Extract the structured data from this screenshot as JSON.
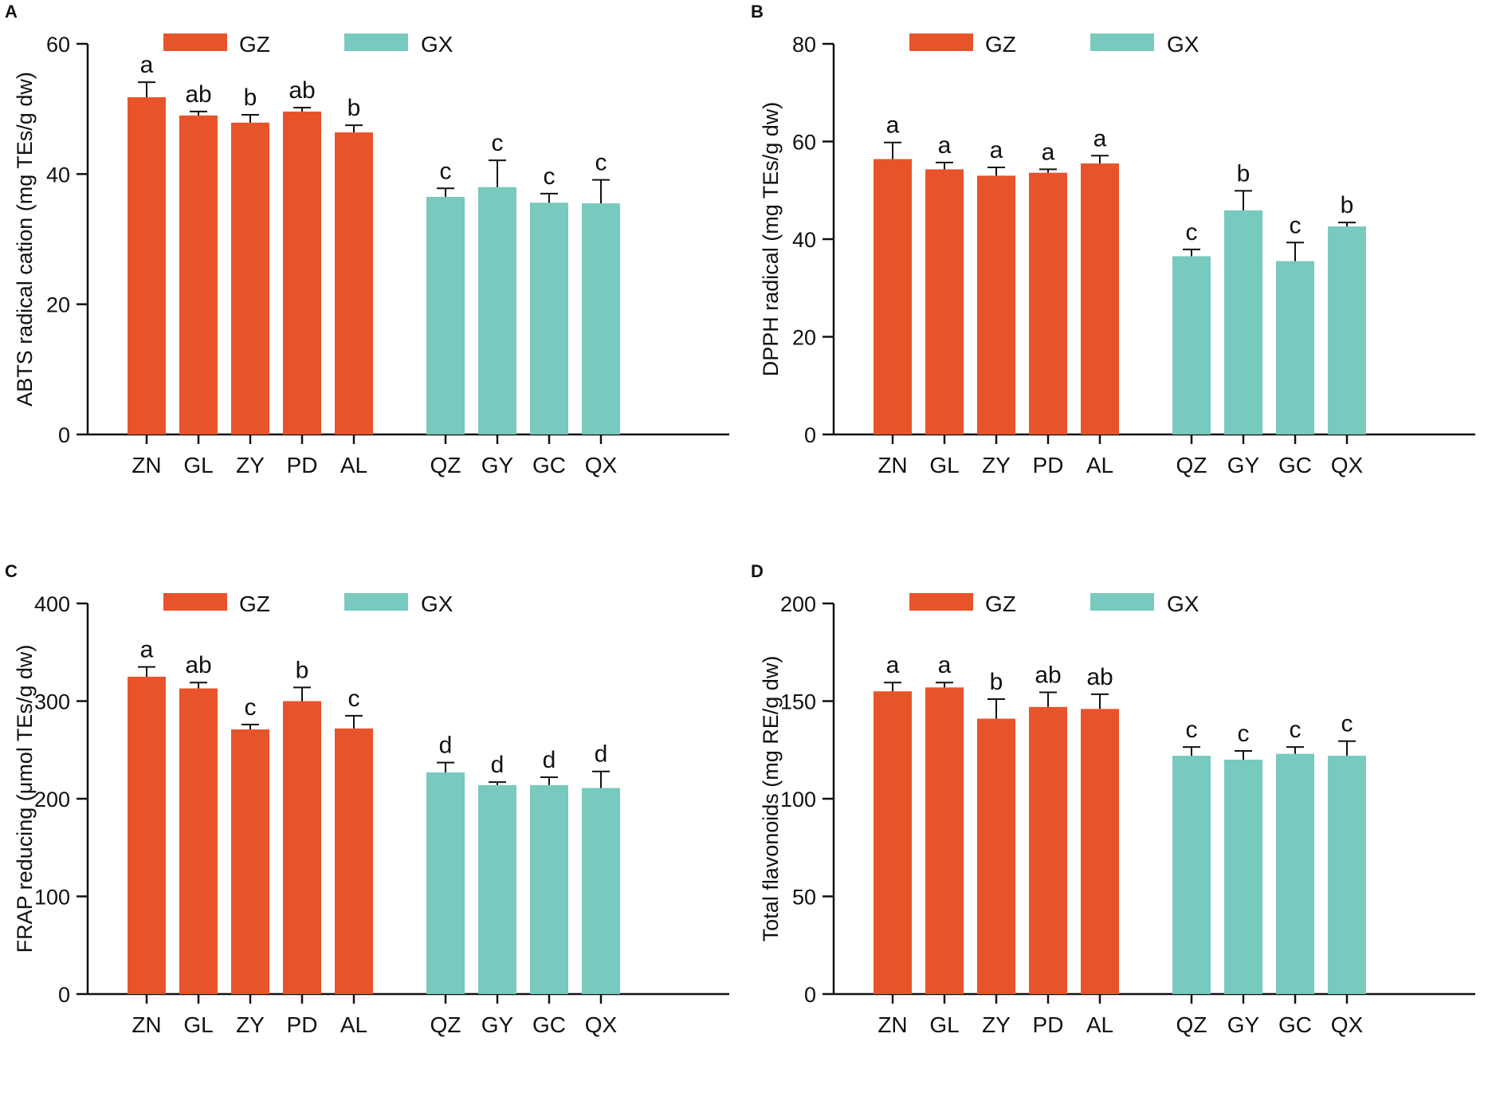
{
  "colors": {
    "GZ": "#E8542A",
    "GX": "#78C9BE",
    "axis": "#111111"
  },
  "chart_data": [
    {
      "panel": "A",
      "type": "bar",
      "ylabel": "ABTS radical cation (mg TEs/g dw)",
      "ylim": [
        0,
        60
      ],
      "yticks": [
        0,
        20,
        40,
        60
      ],
      "legend": [
        "GZ",
        "GX"
      ],
      "groups": [
        {
          "name": "GZ",
          "categories": [
            "ZN",
            "GL",
            "ZY",
            "PD",
            "AL"
          ],
          "values": [
            51.8,
            49.0,
            47.9,
            49.6,
            46.4
          ],
          "errors": [
            2.3,
            0.6,
            1.2,
            0.6,
            1.1
          ],
          "letters": [
            "a",
            "ab",
            "b",
            "ab",
            "b"
          ]
        },
        {
          "name": "GX",
          "categories": [
            "QZ",
            "GY",
            "GC",
            "QX"
          ],
          "values": [
            36.5,
            38.0,
            35.6,
            35.5
          ],
          "errors": [
            1.3,
            4.1,
            1.4,
            3.6
          ],
          "letters": [
            "c",
            "c",
            "c",
            "c"
          ]
        }
      ]
    },
    {
      "panel": "B",
      "type": "bar",
      "ylabel": "DPPH radical (mg TEs/g dw)",
      "ylim": [
        0,
        80
      ],
      "yticks": [
        0,
        20,
        40,
        60,
        80
      ],
      "legend": [
        "GZ",
        "GX"
      ],
      "groups": [
        {
          "name": "GZ",
          "categories": [
            "ZN",
            "GL",
            "ZY",
            "PD",
            "AL"
          ],
          "values": [
            56.4,
            54.3,
            53.0,
            53.6,
            55.5
          ],
          "errors": [
            3.4,
            1.4,
            1.7,
            0.7,
            1.6
          ],
          "letters": [
            "a",
            "a",
            "a",
            "a",
            "a"
          ]
        },
        {
          "name": "GX",
          "categories": [
            "QZ",
            "GY",
            "GC",
            "QX"
          ],
          "values": [
            36.5,
            45.9,
            35.5,
            42.6
          ],
          "errors": [
            1.4,
            4.0,
            3.8,
            0.8
          ],
          "letters": [
            "c",
            "b",
            "c",
            "b"
          ]
        }
      ]
    },
    {
      "panel": "C",
      "type": "bar",
      "ylabel": "FRAP reducing (μmol TEs/g dw)",
      "ylim": [
        0,
        400
      ],
      "yticks": [
        0,
        100,
        200,
        300,
        400
      ],
      "legend": [
        "GZ",
        "GX"
      ],
      "groups": [
        {
          "name": "GZ",
          "categories": [
            "ZN",
            "GL",
            "ZY",
            "PD",
            "AL"
          ],
          "values": [
            325,
            313,
            271,
            300,
            272
          ],
          "errors": [
            10,
            6,
            5,
            14,
            13
          ],
          "letters": [
            "a",
            "ab",
            "c",
            "b",
            "c"
          ]
        },
        {
          "name": "GX",
          "categories": [
            "QZ",
            "GY",
            "GC",
            "QX"
          ],
          "values": [
            227,
            214,
            214,
            211
          ],
          "errors": [
            10,
            3,
            8,
            17
          ],
          "letters": [
            "d",
            "d",
            "d",
            "d"
          ]
        }
      ]
    },
    {
      "panel": "D",
      "type": "bar",
      "ylabel": "Total flavonoids (mg RE/g dw)",
      "ylim": [
        0,
        200
      ],
      "yticks": [
        0,
        50,
        100,
        150,
        200
      ],
      "legend": [
        "GZ",
        "GX"
      ],
      "groups": [
        {
          "name": "GZ",
          "categories": [
            "ZN",
            "GL",
            "ZY",
            "PD",
            "AL"
          ],
          "values": [
            155,
            157,
            141,
            147,
            146
          ],
          "errors": [
            4.5,
            2.5,
            10,
            7.5,
            7.5
          ],
          "letters": [
            "a",
            "a",
            "b",
            "ab",
            "ab"
          ]
        },
        {
          "name": "GX",
          "categories": [
            "QZ",
            "GY",
            "GC",
            "QX"
          ],
          "values": [
            122,
            120,
            123,
            122
          ],
          "errors": [
            4.5,
            4.5,
            3.5,
            7.5
          ],
          "letters": [
            "c",
            "c",
            "c",
            "c"
          ]
        }
      ]
    }
  ]
}
